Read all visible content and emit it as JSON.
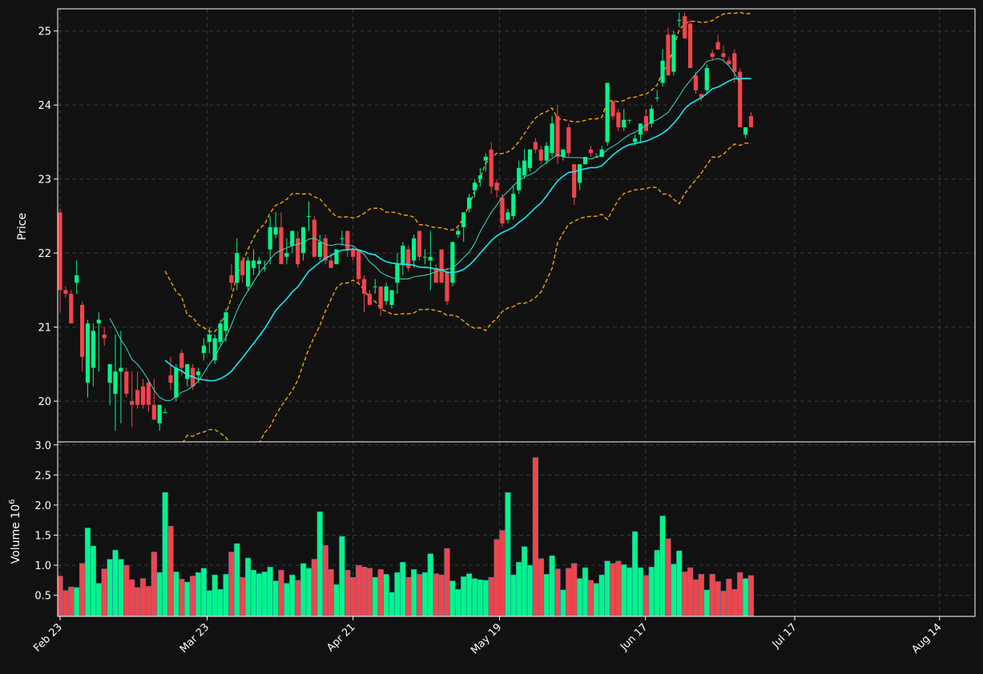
{
  "chart_data": {
    "type": "candlestick",
    "x_ticks": [
      "Feb 23",
      "Mar 23",
      "Apr 21",
      "May 19",
      "Jun 17",
      "Jul 17",
      "Aug 14"
    ],
    "price_panel": {
      "ylabel": "Price",
      "ylim": [
        19.45,
        25.3
      ],
      "y_ticks": [
        20,
        21,
        22,
        23,
        24,
        25
      ],
      "grid": true
    },
    "volume_panel": {
      "ylabel": "Volume",
      "exponent_label": "10",
      "exponent": "6",
      "ylim": [
        0.15,
        3.05
      ],
      "y_ticks": [
        "0.5",
        "1.0",
        "1.5",
        "2.0",
        "2.5",
        "3.0"
      ],
      "grid": true
    },
    "colors": {
      "background": "#111111",
      "up": "#00f58a",
      "down": "#f2454b",
      "ma_fast": "#40d8c8",
      "ma_slow": "#18e8f5",
      "bands": "#f5a300",
      "grid": "#3a3a3a",
      "axes": "#ffffff"
    },
    "candles": [
      {
        "o": 22.55,
        "h": 22.6,
        "l": 21.2,
        "c": 21.5
      },
      {
        "o": 21.5,
        "h": 21.55,
        "l": 21.4,
        "c": 21.45
      },
      {
        "o": 21.45,
        "h": 21.5,
        "l": 21.05,
        "c": 21.05
      },
      {
        "o": 21.6,
        "h": 21.9,
        "l": 21.45,
        "c": 21.7
      },
      {
        "o": 21.3,
        "h": 21.35,
        "l": 20.4,
        "c": 20.6
      },
      {
        "o": 20.25,
        "h": 21.1,
        "l": 20.05,
        "c": 21.05
      },
      {
        "o": 20.45,
        "h": 21.05,
        "l": 20.2,
        "c": 20.95
      },
      {
        "o": 21.05,
        "h": 21.2,
        "l": 20.4,
        "c": 21.1
      },
      {
        "o": 20.9,
        "h": 21.0,
        "l": 20.75,
        "c": 20.85
      },
      {
        "o": 20.25,
        "h": 20.5,
        "l": 19.95,
        "c": 20.5
      },
      {
        "o": 20.1,
        "h": 20.9,
        "l": 19.6,
        "c": 20.4
      },
      {
        "o": 20.4,
        "h": 20.95,
        "l": 19.7,
        "c": 20.45
      },
      {
        "o": 20.4,
        "h": 20.45,
        "l": 20.05,
        "c": 20.1
      },
      {
        "o": 20.0,
        "h": 20.4,
        "l": 19.65,
        "c": 19.95
      },
      {
        "o": 20.15,
        "h": 20.4,
        "l": 19.9,
        "c": 19.95
      },
      {
        "o": 20.2,
        "h": 20.3,
        "l": 19.9,
        "c": 19.95
      },
      {
        "o": 20.25,
        "h": 20.3,
        "l": 19.85,
        "c": 19.95
      },
      {
        "o": 19.95,
        "h": 20.3,
        "l": 19.75,
        "c": 19.75
      },
      {
        "o": 19.7,
        "h": 19.95,
        "l": 19.6,
        "c": 19.95
      },
      {
        "o": 19.85,
        "h": 19.9,
        "l": 19.85,
        "c": 19.85
      },
      {
        "o": 20.35,
        "h": 20.6,
        "l": 20.15,
        "c": 20.25
      },
      {
        "o": 20.05,
        "h": 20.5,
        "l": 20.0,
        "c": 20.45
      },
      {
        "o": 20.65,
        "h": 20.7,
        "l": 20.35,
        "c": 20.45
      },
      {
        "o": 20.3,
        "h": 20.5,
        "l": 20.2,
        "c": 20.5
      },
      {
        "o": 20.45,
        "h": 20.5,
        "l": 20.15,
        "c": 20.2
      },
      {
        "o": 20.35,
        "h": 20.45,
        "l": 20.25,
        "c": 20.4
      },
      {
        "o": 20.65,
        "h": 20.85,
        "l": 20.55,
        "c": 20.75
      },
      {
        "o": 20.8,
        "h": 21.0,
        "l": 20.65,
        "c": 20.9
      },
      {
        "o": 20.55,
        "h": 20.9,
        "l": 20.5,
        "c": 20.85
      },
      {
        "o": 20.8,
        "h": 21.1,
        "l": 20.75,
        "c": 21.05
      },
      {
        "o": 20.95,
        "h": 21.25,
        "l": 20.8,
        "c": 21.2
      },
      {
        "o": 21.7,
        "h": 21.85,
        "l": 21.5,
        "c": 21.6
      },
      {
        "o": 21.6,
        "h": 22.2,
        "l": 21.5,
        "c": 22.0
      },
      {
        "o": 21.9,
        "h": 21.95,
        "l": 21.6,
        "c": 21.7
      },
      {
        "o": 21.55,
        "h": 21.95,
        "l": 21.5,
        "c": 21.9
      },
      {
        "o": 21.8,
        "h": 22.05,
        "l": 21.7,
        "c": 21.9
      },
      {
        "o": 21.85,
        "h": 21.95,
        "l": 21.7,
        "c": 21.9
      },
      {
        "o": 21.8,
        "h": 21.9,
        "l": 21.75,
        "c": 21.8
      },
      {
        "o": 22.05,
        "h": 22.5,
        "l": 21.85,
        "c": 22.35
      },
      {
        "o": 22.25,
        "h": 22.55,
        "l": 22.2,
        "c": 22.35
      },
      {
        "o": 22.35,
        "h": 22.55,
        "l": 21.85,
        "c": 21.85
      },
      {
        "o": 21.95,
        "h": 22.2,
        "l": 21.85,
        "c": 22.0
      },
      {
        "o": 22.1,
        "h": 22.3,
        "l": 22.0,
        "c": 22.3
      },
      {
        "o": 22.2,
        "h": 22.3,
        "l": 21.8,
        "c": 21.85
      },
      {
        "o": 22.0,
        "h": 22.35,
        "l": 21.9,
        "c": 22.35
      },
      {
        "o": 22.5,
        "h": 22.7,
        "l": 22.3,
        "c": 22.5
      },
      {
        "o": 22.45,
        "h": 22.5,
        "l": 21.95,
        "c": 21.95
      },
      {
        "o": 21.95,
        "h": 22.25,
        "l": 21.9,
        "c": 22.15
      },
      {
        "o": 22.2,
        "h": 22.25,
        "l": 21.85,
        "c": 21.9
      },
      {
        "o": 21.9,
        "h": 22.0,
        "l": 21.8,
        "c": 21.8
      },
      {
        "o": 21.85,
        "h": 22.05,
        "l": 21.85,
        "c": 22.05
      },
      {
        "o": 22.2,
        "h": 22.3,
        "l": 22.1,
        "c": 22.2
      },
      {
        "o": 22.3,
        "h": 22.3,
        "l": 21.95,
        "c": 22.05
      },
      {
        "o": 22.05,
        "h": 22.1,
        "l": 21.9,
        "c": 21.95
      },
      {
        "o": 22.05,
        "h": 22.05,
        "l": 21.6,
        "c": 21.65
      },
      {
        "o": 21.65,
        "h": 21.7,
        "l": 21.2,
        "c": 21.45
      },
      {
        "o": 21.45,
        "h": 21.5,
        "l": 21.3,
        "c": 21.3
      },
      {
        "o": 21.55,
        "h": 21.65,
        "l": 21.45,
        "c": 21.55
      },
      {
        "o": 21.55,
        "h": 21.55,
        "l": 21.15,
        "c": 21.25
      },
      {
        "o": 21.35,
        "h": 21.6,
        "l": 21.3,
        "c": 21.55
      },
      {
        "o": 21.3,
        "h": 21.5,
        "l": 21.25,
        "c": 21.5
      },
      {
        "o": 21.6,
        "h": 22.0,
        "l": 21.45,
        "c": 21.85
      },
      {
        "o": 21.85,
        "h": 22.15,
        "l": 21.7,
        "c": 22.1
      },
      {
        "o": 22.05,
        "h": 22.1,
        "l": 21.75,
        "c": 21.8
      },
      {
        "o": 21.9,
        "h": 22.25,
        "l": 21.8,
        "c": 22.2
      },
      {
        "o": 22.3,
        "h": 22.3,
        "l": 21.9,
        "c": 21.95
      },
      {
        "o": 21.95,
        "h": 22.05,
        "l": 21.85,
        "c": 21.95
      },
      {
        "o": 21.9,
        "h": 22.3,
        "l": 21.5,
        "c": 21.95
      },
      {
        "o": 21.8,
        "h": 21.85,
        "l": 21.6,
        "c": 21.6
      },
      {
        "o": 22.05,
        "h": 22.05,
        "l": 21.6,
        "c": 21.6
      },
      {
        "o": 21.75,
        "h": 21.8,
        "l": 21.3,
        "c": 21.35
      },
      {
        "o": 21.6,
        "h": 22.15,
        "l": 21.55,
        "c": 22.15
      },
      {
        "o": 22.25,
        "h": 22.35,
        "l": 22.2,
        "c": 22.3
      },
      {
        "o": 22.35,
        "h": 22.55,
        "l": 22.15,
        "c": 22.55
      },
      {
        "o": 22.6,
        "h": 22.8,
        "l": 22.55,
        "c": 22.75
      },
      {
        "o": 22.85,
        "h": 23.0,
        "l": 22.75,
        "c": 22.95
      },
      {
        "o": 23.0,
        "h": 23.15,
        "l": 22.9,
        "c": 23.05
      },
      {
        "o": 23.25,
        "h": 23.35,
        "l": 23.1,
        "c": 23.3
      },
      {
        "o": 23.4,
        "h": 23.5,
        "l": 22.8,
        "c": 22.9
      },
      {
        "o": 22.95,
        "h": 23.0,
        "l": 22.75,
        "c": 22.85
      },
      {
        "o": 22.75,
        "h": 22.8,
        "l": 22.35,
        "c": 22.4
      },
      {
        "o": 22.45,
        "h": 22.6,
        "l": 22.4,
        "c": 22.55
      },
      {
        "o": 22.5,
        "h": 22.9,
        "l": 22.45,
        "c": 22.8
      },
      {
        "o": 22.85,
        "h": 23.25,
        "l": 22.8,
        "c": 23.15
      },
      {
        "o": 23.05,
        "h": 23.4,
        "l": 23.0,
        "c": 23.25
      },
      {
        "o": 23.15,
        "h": 23.4,
        "l": 23.1,
        "c": 23.4
      },
      {
        "o": 23.5,
        "h": 23.55,
        "l": 23.35,
        "c": 23.4
      },
      {
        "o": 23.4,
        "h": 23.45,
        "l": 23.2,
        "c": 23.25
      },
      {
        "o": 23.25,
        "h": 23.5,
        "l": 23.2,
        "c": 23.45
      },
      {
        "o": 23.35,
        "h": 23.85,
        "l": 23.3,
        "c": 23.75
      },
      {
        "o": 23.85,
        "h": 24.0,
        "l": 23.2,
        "c": 23.3
      },
      {
        "o": 23.3,
        "h": 23.4,
        "l": 23.25,
        "c": 23.4
      },
      {
        "o": 23.7,
        "h": 23.75,
        "l": 23.3,
        "c": 23.35
      },
      {
        "o": 23.2,
        "h": 23.2,
        "l": 22.65,
        "c": 22.75
      },
      {
        "o": 22.95,
        "h": 23.2,
        "l": 22.85,
        "c": 23.2
      },
      {
        "o": 23.2,
        "h": 23.3,
        "l": 23.2,
        "c": 23.3
      },
      {
        "o": 23.4,
        "h": 23.45,
        "l": 23.3,
        "c": 23.35
      },
      {
        "o": 23.3,
        "h": 23.35,
        "l": 23.3,
        "c": 23.3
      },
      {
        "o": 23.3,
        "h": 23.45,
        "l": 23.3,
        "c": 23.4
      },
      {
        "o": 23.5,
        "h": 24.3,
        "l": 23.45,
        "c": 24.3
      },
      {
        "o": 24.05,
        "h": 24.05,
        "l": 23.8,
        "c": 23.85
      },
      {
        "o": 23.9,
        "h": 23.95,
        "l": 23.65,
        "c": 23.7
      },
      {
        "o": 23.7,
        "h": 23.95,
        "l": 23.65,
        "c": 23.8
      },
      {
        "o": 23.8,
        "h": 23.8,
        "l": 23.75,
        "c": 23.8
      },
      {
        "o": 23.5,
        "h": 23.6,
        "l": 23.45,
        "c": 23.55
      },
      {
        "o": 23.6,
        "h": 23.75,
        "l": 23.5,
        "c": 23.75
      },
      {
        "o": 23.85,
        "h": 23.95,
        "l": 23.65,
        "c": 23.65
      },
      {
        "o": 23.75,
        "h": 24.0,
        "l": 23.7,
        "c": 23.95
      },
      {
        "o": 24.1,
        "h": 24.2,
        "l": 24.05,
        "c": 24.1
      },
      {
        "o": 24.3,
        "h": 24.75,
        "l": 24.25,
        "c": 24.6
      },
      {
        "o": 24.95,
        "h": 25.05,
        "l": 24.4,
        "c": 24.4
      },
      {
        "o": 24.45,
        "h": 25.0,
        "l": 24.4,
        "c": 24.95
      },
      {
        "o": 25.15,
        "h": 25.25,
        "l": 25.05,
        "c": 25.15
      },
      {
        "o": 25.2,
        "h": 25.25,
        "l": 24.9,
        "c": 24.9
      },
      {
        "o": 25.1,
        "h": 25.15,
        "l": 24.5,
        "c": 24.5
      },
      {
        "o": 24.4,
        "h": 24.45,
        "l": 24.15,
        "c": 24.2
      },
      {
        "o": 24.15,
        "h": 24.15,
        "l": 24.05,
        "c": 24.1
      },
      {
        "o": 24.2,
        "h": 24.55,
        "l": 24.15,
        "c": 24.5
      },
      {
        "o": 24.7,
        "h": 24.75,
        "l": 24.6,
        "c": 24.65
      },
      {
        "o": 24.85,
        "h": 24.95,
        "l": 24.75,
        "c": 24.75
      },
      {
        "o": 24.7,
        "h": 24.8,
        "l": 24.6,
        "c": 24.65
      },
      {
        "o": 24.6,
        "h": 24.65,
        "l": 24.55,
        "c": 24.55
      },
      {
        "o": 24.7,
        "h": 24.75,
        "l": 24.3,
        "c": 24.45
      },
      {
        "o": 24.45,
        "h": 24.5,
        "l": 23.7,
        "c": 23.7
      },
      {
        "o": 23.6,
        "h": 23.7,
        "l": 23.55,
        "c": 23.7
      },
      {
        "o": 23.85,
        "h": 23.9,
        "l": 23.7,
        "c": 23.7
      }
    ],
    "volume": [
      0.82,
      0.58,
      0.64,
      0.63,
      1.03,
      1.62,
      1.32,
      0.7,
      0.94,
      1.1,
      1.25,
      1.1,
      1.0,
      0.76,
      0.63,
      0.78,
      0.65,
      1.22,
      0.88,
      2.21,
      1.65,
      0.89,
      0.77,
      0.72,
      0.82,
      0.88,
      0.95,
      0.58,
      0.84,
      0.6,
      0.85,
      1.22,
      1.36,
      0.8,
      1.12,
      0.92,
      0.86,
      0.89,
      0.97,
      0.74,
      0.92,
      0.7,
      0.84,
      0.75,
      1.03,
      0.95,
      1.1,
      1.89,
      1.33,
      0.93,
      0.68,
      1.48,
      0.92,
      0.8,
      1.0,
      0.97,
      0.95,
      0.8,
      0.93,
      0.85,
      0.55,
      0.88,
      1.05,
      0.8,
      0.93,
      0.85,
      0.88,
      1.19,
      0.86,
      0.84,
      1.28,
      0.74,
      0.6,
      0.81,
      0.86,
      0.78,
      0.76,
      0.75,
      0.8,
      1.43,
      1.58,
      2.21,
      0.84,
      1.05,
      1.31,
      1.0,
      2.79,
      1.11,
      0.85,
      1.16,
      0.94,
      0.59,
      0.95,
      1.03,
      0.78,
      0.96,
      0.75,
      0.7,
      0.84,
      1.07,
      1.03,
      1.07,
      1.01,
      0.96,
      1.56,
      0.96,
      0.83,
      0.97,
      1.25,
      1.82,
      1.44,
      1.02,
      1.24,
      0.89,
      0.96,
      0.76,
      0.85,
      0.59,
      0.85,
      0.73,
      0.57,
      0.77,
      0.6,
      0.88,
      0.78,
      0.83
    ],
    "ma_fast": [
      null,
      null,
      null,
      null,
      null,
      null,
      null,
      null,
      null,
      21.12,
      20.98,
      20.83,
      20.72,
      20.56,
      20.5,
      20.4,
      20.28,
      20.15,
      20.05,
      20.01,
      20.01,
      20.06,
      20.12,
      20.15,
      20.2,
      20.27,
      20.38,
      20.5,
      20.6,
      20.74,
      20.86,
      21.03,
      21.22,
      21.37,
      21.49,
      21.61,
      21.73,
      21.82,
      21.92,
      22.0,
      22.04,
      22.07,
      22.1,
      22.12,
      22.14,
      22.19,
      22.2,
      22.16,
      22.12,
      22.1,
      22.12,
      22.12,
      22.1,
      22.1,
      22.04,
      21.98,
      21.88,
      21.82,
      21.74,
      21.7,
      21.67,
      21.65,
      21.65,
      21.65,
      21.68,
      21.69,
      21.7,
      21.72,
      21.75,
      21.77,
      21.78,
      21.8,
      21.86,
      21.94,
      22.01,
      22.13,
      22.29,
      22.42,
      22.55,
      22.65,
      22.76,
      22.83,
      22.91,
      22.98,
      23.03,
      23.06,
      23.1,
      23.17,
      23.22,
      23.28,
      23.33,
      23.3,
      23.29,
      23.29,
      23.29,
      23.28,
      23.27,
      23.3,
      23.33,
      23.4,
      23.44,
      23.49,
      23.55,
      23.6,
      23.63,
      23.68,
      23.72,
      23.78,
      23.8,
      23.85,
      23.9,
      24.01,
      24.12,
      24.24,
      24.33,
      24.42,
      24.5,
      24.59,
      24.61,
      24.63,
      24.6,
      24.53,
      24.43,
      24.3
    ]
  }
}
